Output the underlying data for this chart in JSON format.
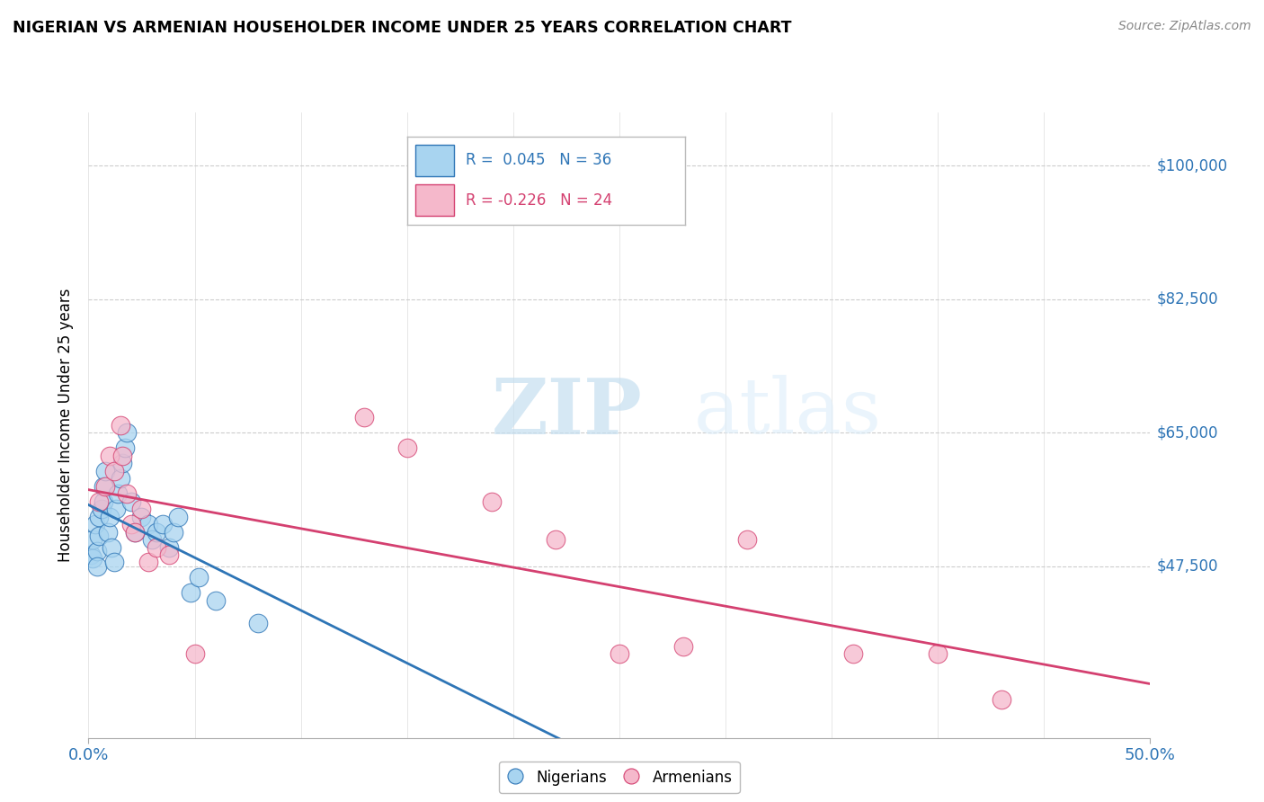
{
  "title": "NIGERIAN VS ARMENIAN HOUSEHOLDER INCOME UNDER 25 YEARS CORRELATION CHART",
  "source": "Source: ZipAtlas.com",
  "ylabel": "Householder Income Under 25 years",
  "y_tick_vals": [
    47500,
    65000,
    82500,
    100000
  ],
  "y_tick_labels": [
    "$47,500",
    "$65,000",
    "$82,500",
    "$100,000"
  ],
  "x_lim": [
    0.0,
    0.5
  ],
  "y_lim": [
    25000,
    107000
  ],
  "nigerian_R": 0.045,
  "nigerian_N": 36,
  "armenian_R": -0.226,
  "armenian_N": 24,
  "nigerian_color": "#a8d4f0",
  "armenian_color": "#f5b8cb",
  "nigerian_line_color": "#2e75b6",
  "armenian_line_color": "#d44070",
  "watermark_zip": "ZIP",
  "watermark_atlas": "atlas",
  "nigerians_x": [
    0.001,
    0.002,
    0.002,
    0.003,
    0.004,
    0.004,
    0.005,
    0.005,
    0.006,
    0.007,
    0.007,
    0.008,
    0.009,
    0.01,
    0.011,
    0.012,
    0.013,
    0.014,
    0.015,
    0.016,
    0.017,
    0.018,
    0.02,
    0.022,
    0.025,
    0.028,
    0.03,
    0.032,
    0.035,
    0.038,
    0.04,
    0.042,
    0.048,
    0.052,
    0.06,
    0.08
  ],
  "nigerians_y": [
    49000,
    48500,
    51000,
    53000,
    49500,
    47500,
    54000,
    51500,
    55000,
    58000,
    56000,
    60000,
    52000,
    54000,
    50000,
    48000,
    55000,
    57000,
    59000,
    61000,
    63000,
    65000,
    56000,
    52000,
    54000,
    53000,
    51000,
    52000,
    53000,
    50000,
    52000,
    54000,
    44000,
    46000,
    43000,
    40000
  ],
  "armenians_x": [
    0.005,
    0.008,
    0.01,
    0.012,
    0.015,
    0.016,
    0.018,
    0.02,
    0.022,
    0.025,
    0.028,
    0.032,
    0.038,
    0.05,
    0.13,
    0.15,
    0.19,
    0.22,
    0.25,
    0.28,
    0.31,
    0.36,
    0.4,
    0.43
  ],
  "armenians_y": [
    56000,
    58000,
    62000,
    60000,
    66000,
    62000,
    57000,
    53000,
    52000,
    55000,
    48000,
    50000,
    49000,
    36000,
    67000,
    63000,
    56000,
    51000,
    36000,
    37000,
    51000,
    36000,
    36000,
    30000
  ]
}
